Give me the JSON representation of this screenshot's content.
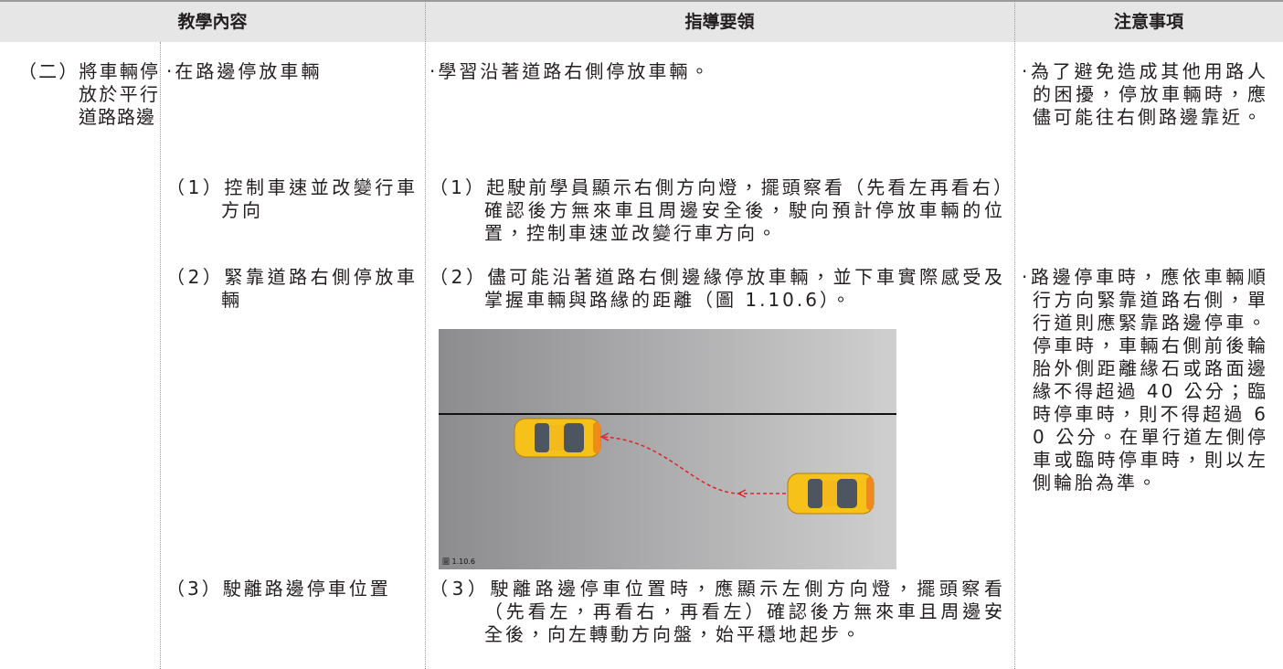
{
  "table": {
    "headers": [
      "教學內容",
      "指導要領",
      "注意事項"
    ],
    "section": "（二）將車輛停放於平行道路路邊",
    "rows": [
      {
        "item": "·在路邊停放車輛",
        "guidance": "·學習沿著道路右側停放車輛。",
        "notes": "·為了避免造成其他用路人的困擾，停放車輛時，應儘可能往右側路邊靠近。"
      },
      {
        "item": "（1）控制車速並改變行車方向",
        "guidance": "（1）起駛前學員顯示右側方向燈，擺頭察看（先看左再看右）確認後方無來車且周邊安全後，駛向預計停放車輛的位置，控制車速並改變行車方向。"
      },
      {
        "item": "（2）緊靠道路右側停放車輛",
        "guidance": "（2）儘可能沿著道路右側邊緣停放車輛，並下車實際感受及掌握車輛與路緣的距離（圖 1.10.6）。",
        "notes": "·路邊停車時，應依車輛順行方向緊靠道路右側，單行道則應緊靠路邊停車。停車時，車輛右側前後輪胎外側距離緣石或路面邊緣不得超過 40 公分；臨時停車時，則不得超過 60 公分。在單行道左側停車或臨時停車時，則以左側輪胎為準。"
      },
      {
        "item": "（3）駛離路邊停車位置",
        "guidance": "（3）駛離路邊停車位置時，應顯示左側方向燈，擺頭察看（先看左，再看右，再看左）確認後方無來車且周邊安全後，向左轉動方向盤，始平穩地起步。"
      }
    ],
    "figure": {
      "caption": "圖 1.10.6"
    }
  }
}
